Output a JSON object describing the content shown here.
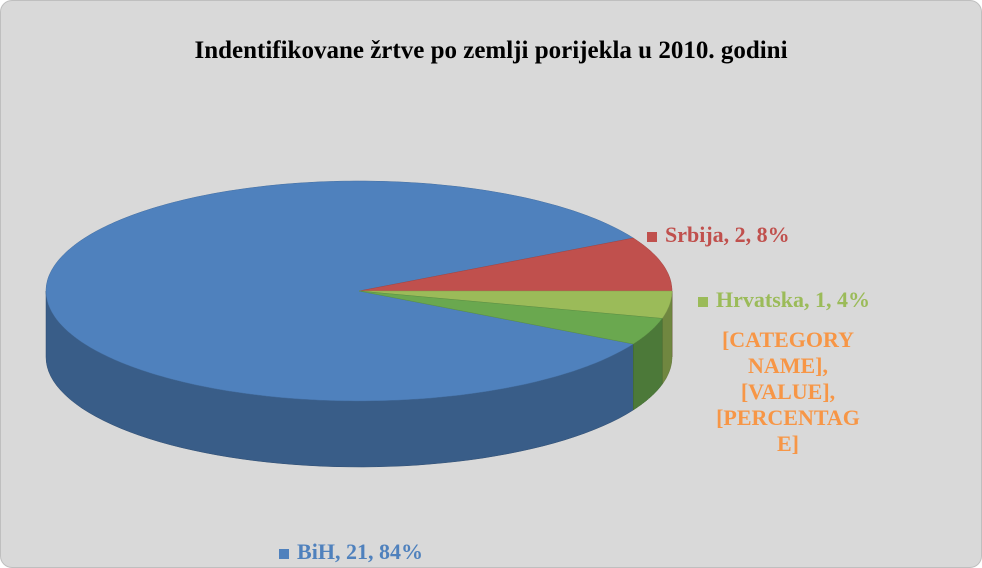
{
  "chart_data": {
    "type": "pie3d",
    "title": "Indentifikovane žrtve po zemlji porijekla u 2010. godini",
    "values": [
      21,
      2,
      1,
      1
    ],
    "value_labels": [
      "BiH, 21, 84%",
      "Srbija, 2, 8%",
      "Hrvatska, 1, 4%",
      "[CATEGORY NAME], [VALUE], [PERCENTAGE]"
    ],
    "colors": [
      "#4f81bd",
      "#c0504d",
      "#9bbb59",
      "#6aa84f"
    ],
    "label_colors": [
      "#4f81bd",
      "#c0504d",
      "#9bbb59",
      "#f79646"
    ]
  }
}
